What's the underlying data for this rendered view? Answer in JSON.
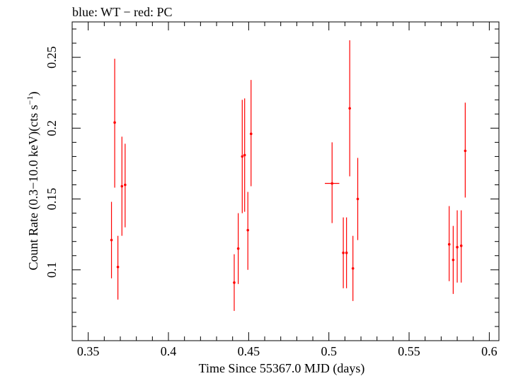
{
  "chart_data": {
    "type": "scatter",
    "title": "blue: WT − red: PC",
    "xlabel": "Time Since 55367.0 MJD (days)",
    "ylabel_main": "Count Rate (0.3−10.0 keV)(cts s",
    "ylabel_sup": "−1",
    "ylabel_close": ")",
    "xlim": [
      0.34,
      0.606
    ],
    "ylim": [
      0.05,
      0.275
    ],
    "xticks": [
      0.35,
      0.4,
      0.45,
      0.5,
      0.55,
      0.6
    ],
    "xtick_labels": [
      "0.35",
      "0.4",
      "0.45",
      "0.5",
      "0.55",
      "0.6"
    ],
    "yticks": [
      0.1,
      0.15,
      0.2,
      0.25
    ],
    "ytick_labels": [
      "0.1",
      "0.15",
      "0.2",
      "0.25"
    ],
    "grid": false,
    "series": [
      {
        "name": "PC",
        "color": "#ff0000",
        "points": [
          {
            "x": 0.3645,
            "y": 0.121,
            "ylo": 0.094,
            "yhi": 0.148,
            "xerr": 0.0005
          },
          {
            "x": 0.3665,
            "y": 0.204,
            "ylo": 0.158,
            "yhi": 0.249,
            "xerr": 0.0005
          },
          {
            "x": 0.3685,
            "y": 0.102,
            "ylo": 0.079,
            "yhi": 0.124,
            "xerr": 0.0005
          },
          {
            "x": 0.371,
            "y": 0.159,
            "ylo": 0.124,
            "yhi": 0.194,
            "xerr": 0.0005
          },
          {
            "x": 0.373,
            "y": 0.16,
            "ylo": 0.13,
            "yhi": 0.189,
            "xerr": 0.0005
          },
          {
            "x": 0.441,
            "y": 0.091,
            "ylo": 0.071,
            "yhi": 0.111,
            "xerr": 0.0005
          },
          {
            "x": 0.4435,
            "y": 0.115,
            "ylo": 0.09,
            "yhi": 0.14,
            "xerr": 0.0005
          },
          {
            "x": 0.446,
            "y": 0.18,
            "ylo": 0.14,
            "yhi": 0.22,
            "xerr": 0.0005
          },
          {
            "x": 0.4475,
            "y": 0.181,
            "ylo": 0.141,
            "yhi": 0.221,
            "xerr": 0.0005
          },
          {
            "x": 0.4495,
            "y": 0.128,
            "ylo": 0.1,
            "yhi": 0.155,
            "xerr": 0.0005
          },
          {
            "x": 0.4515,
            "y": 0.196,
            "ylo": 0.159,
            "yhi": 0.234,
            "xerr": 0.0005
          },
          {
            "x": 0.502,
            "y": 0.161,
            "ylo": 0.133,
            "yhi": 0.19,
            "xerr": 0.0045
          },
          {
            "x": 0.509,
            "y": 0.112,
            "ylo": 0.087,
            "yhi": 0.137,
            "xerr": 0.0005
          },
          {
            "x": 0.511,
            "y": 0.112,
            "ylo": 0.087,
            "yhi": 0.137,
            "xerr": 0.0005
          },
          {
            "x": 0.513,
            "y": 0.214,
            "ylo": 0.166,
            "yhi": 0.262,
            "xerr": 0.0005
          },
          {
            "x": 0.515,
            "y": 0.101,
            "ylo": 0.078,
            "yhi": 0.124,
            "xerr": 0.0005
          },
          {
            "x": 0.518,
            "y": 0.15,
            "ylo": 0.121,
            "yhi": 0.179,
            "xerr": 0.0005
          },
          {
            "x": 0.575,
            "y": 0.118,
            "ylo": 0.092,
            "yhi": 0.145,
            "xerr": 0.0005
          },
          {
            "x": 0.5775,
            "y": 0.107,
            "ylo": 0.083,
            "yhi": 0.131,
            "xerr": 0.0005
          },
          {
            "x": 0.58,
            "y": 0.116,
            "ylo": 0.091,
            "yhi": 0.142,
            "xerr": 0.0005
          },
          {
            "x": 0.5825,
            "y": 0.117,
            "ylo": 0.091,
            "yhi": 0.142,
            "xerr": 0.0005
          },
          {
            "x": 0.585,
            "y": 0.184,
            "ylo": 0.151,
            "yhi": 0.218,
            "xerr": 0.0005
          }
        ]
      }
    ]
  }
}
